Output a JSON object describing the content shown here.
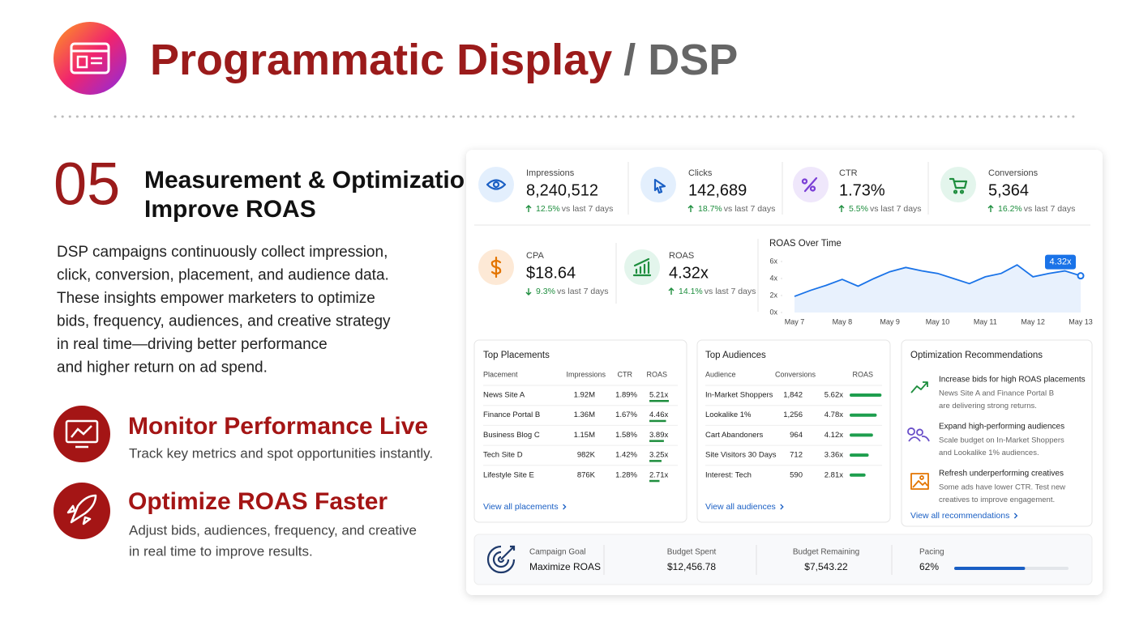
{
  "header": {
    "title": "Programmatic Display",
    "title_suffix": "/ DSP"
  },
  "section": {
    "number": "05",
    "title_line1": "Measurement & Optimization",
    "title_line2": "Improve ROAS",
    "body": [
      "DSP campaigns continuously collect impression,",
      "click, conversion, placement, and audience data.",
      "These insights empower marketers to optimize",
      "bids, frequency, audiences, and creative strategy",
      "in real time—driving better performance",
      "and higher return on ad spend."
    ]
  },
  "features": [
    {
      "title": "Monitor Performance Live",
      "text": [
        "Track key metrics and spot opportunities instantly."
      ]
    },
    {
      "title": "Optimize ROAS Faster",
      "text": [
        "Adjust bids, audiences, frequency, and creative",
        "in real time to improve results."
      ]
    }
  ],
  "kpis": [
    {
      "label": "Impressions",
      "value": "8,240,512",
      "change": "12.5%",
      "direction": "up",
      "compare": "vs last 7 days"
    },
    {
      "label": "Clicks",
      "value": "142,689",
      "change": "18.7%",
      "direction": "up",
      "compare": "vs last 7 days"
    },
    {
      "label": "CTR",
      "value": "1.73%",
      "change": "5.5%",
      "direction": "up",
      "compare": "vs last 7 days"
    },
    {
      "label": "Conversions",
      "value": "5,364",
      "change": "16.2%",
      "direction": "up",
      "compare": "vs last 7 days"
    },
    {
      "label": "CPA",
      "value": "$18.64",
      "change": "9.3%",
      "direction": "down",
      "compare": "vs last 7 days"
    },
    {
      "label": "ROAS",
      "value": "4.32x",
      "change": "14.1%",
      "direction": "up",
      "compare": "vs last 7 days"
    }
  ],
  "chart_data": {
    "type": "line",
    "title": "ROAS Over Time",
    "categories": [
      "May 7",
      null,
      null,
      "May 8",
      null,
      null,
      "May 9",
      null,
      null,
      "May 10",
      null,
      null,
      "May 11",
      null,
      null,
      "May 12",
      null,
      null,
      "May 13"
    ],
    "series": [
      {
        "name": "ROAS",
        "color": "#1a73e8",
        "values": [
          1.9,
          2.6,
          3.2,
          3.9,
          3.1,
          4.0,
          4.8,
          5.3,
          4.9,
          4.6,
          4.0,
          3.4,
          4.2,
          4.6,
          5.6,
          4.2,
          4.6,
          4.9,
          4.32
        ],
        "value_labels": [
          null,
          null,
          null,
          null,
          null,
          null,
          null,
          null,
          null,
          null,
          null,
          null,
          null,
          null,
          null,
          null,
          null,
          null,
          "4.32x"
        ]
      }
    ],
    "ylim": [
      0,
      6
    ],
    "yticks": [
      {
        "value": 0,
        "label": "0x"
      },
      {
        "value": 2,
        "label": "2x"
      },
      {
        "value": 4,
        "label": "4x"
      },
      {
        "value": 6,
        "label": "6x"
      }
    ]
  },
  "placements": {
    "title": "Top Placements",
    "columns": [
      "Placement",
      "Impressions",
      "CTR",
      "ROAS"
    ],
    "rows": [
      [
        "News Site A",
        "1.92M",
        "1.89%",
        "5.21x"
      ],
      [
        "Finance Portal B",
        "1.36M",
        "1.67%",
        "4.46x"
      ],
      [
        "Business Blog C",
        "1.15M",
        "1.58%",
        "3.89x"
      ],
      [
        "Tech Site D",
        "982K",
        "1.42%",
        "3.25x"
      ],
      [
        "Lifestyle Site E",
        "876K",
        "1.28%",
        "2.71x"
      ]
    ],
    "link": "View all placements"
  },
  "audiences": {
    "title": "Top Audiences",
    "columns": [
      "Audience",
      "Conversions",
      "ROAS"
    ],
    "rows": [
      [
        "In-Market Shoppers",
        "1,842",
        "5.62x"
      ],
      [
        "Lookalike 1%",
        "1,256",
        "4.78x"
      ],
      [
        "Cart Abandoners",
        "964",
        "4.12x"
      ],
      [
        "Site Visitors 30 Days",
        "712",
        "3.36x"
      ],
      [
        "Interest: Tech",
        "590",
        "2.81x"
      ]
    ],
    "link": "View all audiences"
  },
  "recommendations": {
    "title": "Optimization Recommendations",
    "items": [
      {
        "title": "Increase bids for high ROAS placements",
        "text": [
          "News Site A and Finance Portal B",
          "are delivering strong returns."
        ]
      },
      {
        "title": "Expand high-performing audiences",
        "text": [
          "Scale budget on In-Market Shoppers",
          "and Lookalike 1% audiences."
        ]
      },
      {
        "title": "Refresh underperforming creatives",
        "text": [
          "Some ads have lower CTR. Test new",
          "creatives to improve engagement."
        ]
      }
    ],
    "link": "View all recommendations"
  },
  "footer": {
    "goal_label": "Campaign Goal",
    "goal": "Maximize ROAS",
    "spent_label": "Budget Spent",
    "spent": "$12,456.78",
    "remaining_label": "Budget Remaining",
    "remaining": "$7,543.22",
    "pacing_label": "Pacing",
    "pacing": 62,
    "pacing_text": "62%"
  }
}
